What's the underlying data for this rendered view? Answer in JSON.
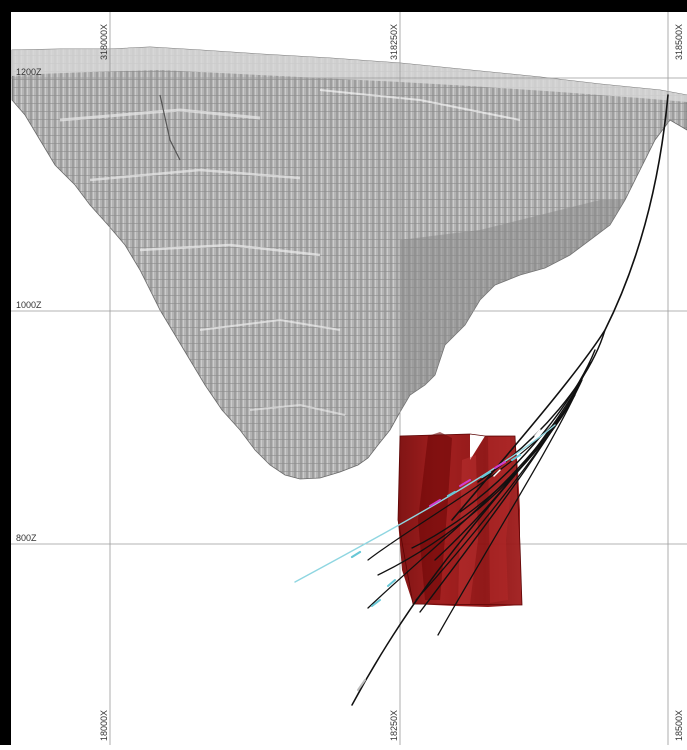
{
  "section_view": {
    "elevation_labels": [
      "1200Z",
      "1000Z",
      "800Z"
    ],
    "top_easting_labels": [
      "318000X",
      "318250X",
      "318500X"
    ],
    "bottom_easting_labels": [
      "18000X",
      "18250X",
      "18500X"
    ],
    "colors": {
      "frame": "#000000",
      "grid": "#9a9a9a",
      "pit_light": "#d8d8d8",
      "pit_mid": "#a9a9a9",
      "pit_dark": "#6e6e6e",
      "orebody": "#8b0d0d",
      "orebody_light": "#b52a2a",
      "drillhole": "#111111",
      "drillhole_trace_cyan": "#67c7d6",
      "drillhole_trace_magenta": "#d23ad0"
    }
  }
}
